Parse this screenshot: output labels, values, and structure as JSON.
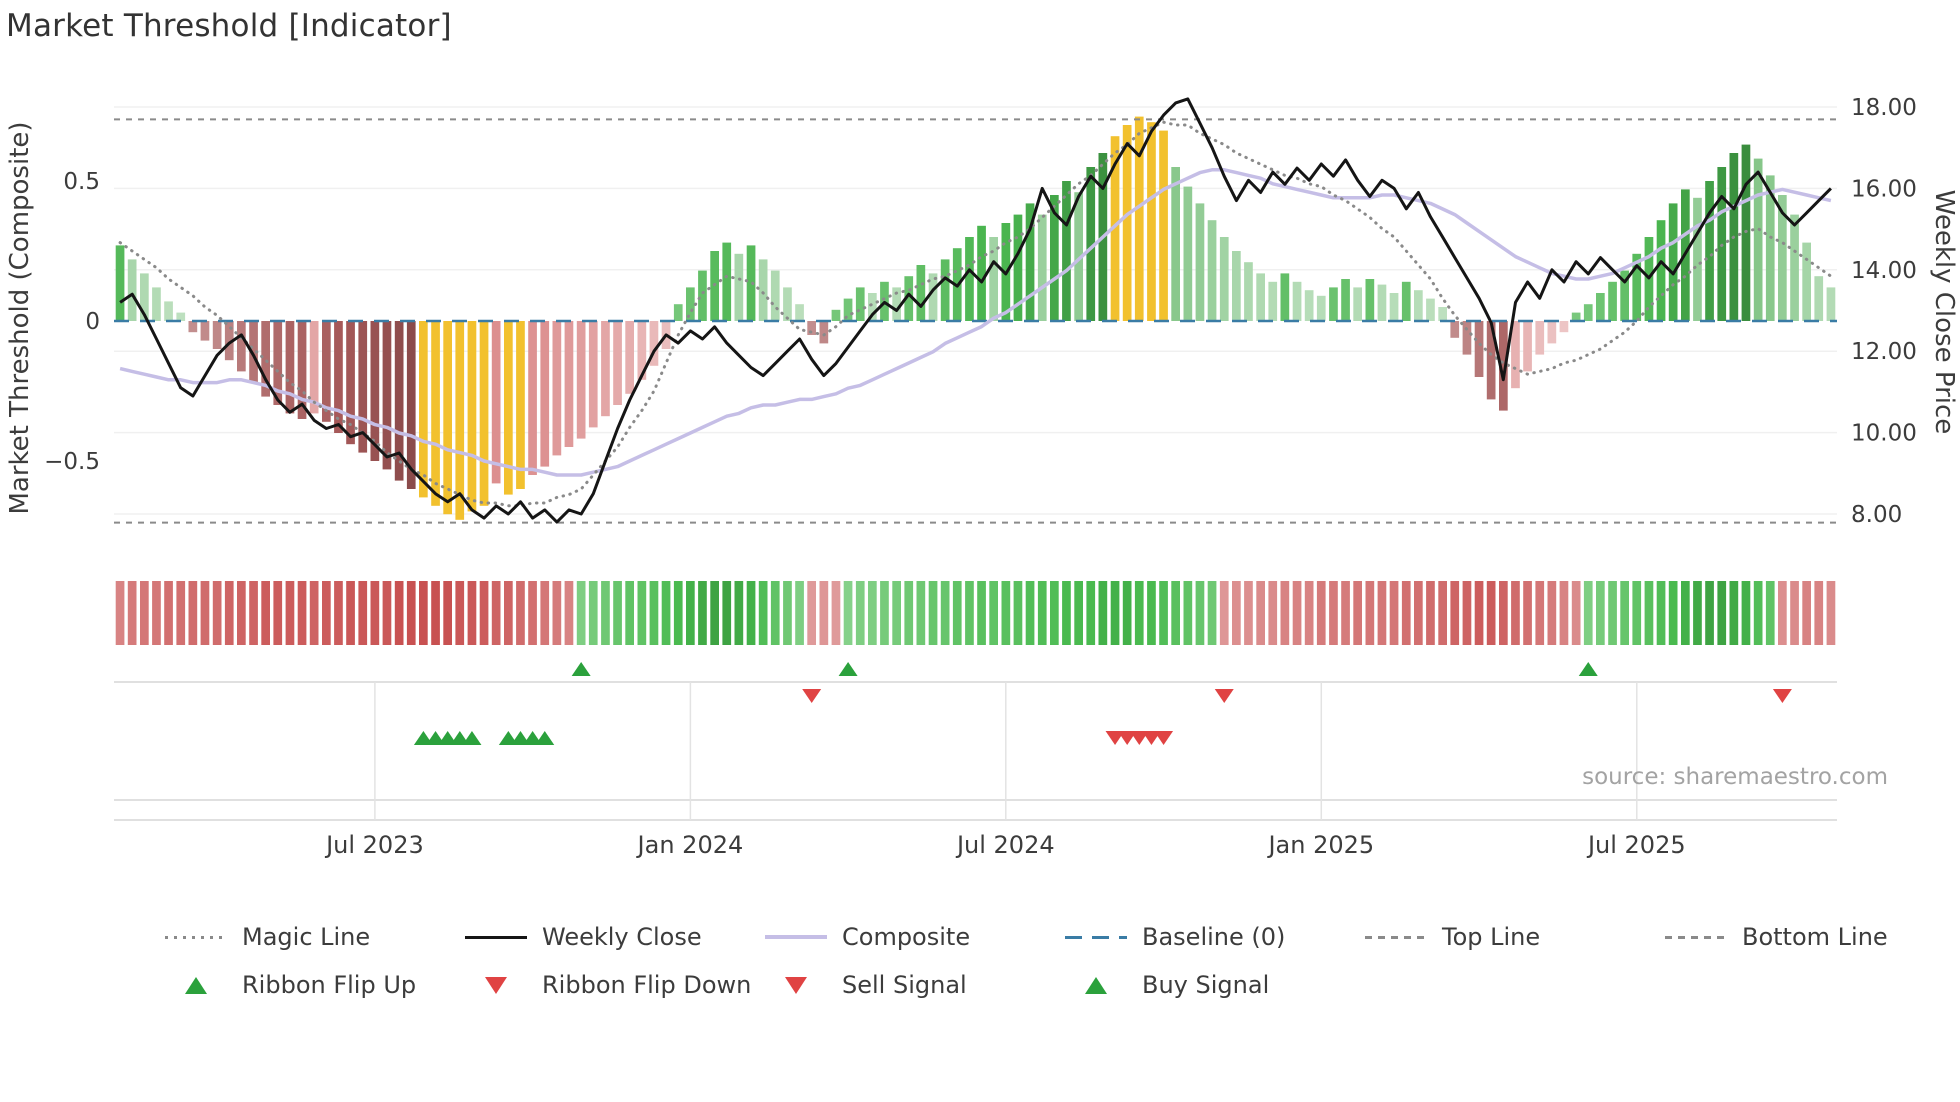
{
  "title": "Market Threshold [Indicator]",
  "source_note": "source: sharemaestro.com",
  "colors": {
    "accent_green": "#2ba13c",
    "accent_red": "#e04343",
    "yellow_extreme": "#f2c12e",
    "composite_line": "#c5bee6",
    "weekly_close_line": "#151515",
    "magic_line": "#8a8a8a",
    "baseline": "#3a7ca5",
    "band_lines": "#8a8a8a"
  },
  "legend": {
    "row1": [
      {
        "label": "Magic Line",
        "type": "dotted-gray-line",
        "color": "#8a8a8a",
        "name": "legend-magic-line"
      },
      {
        "label": "Weekly Close",
        "type": "solid-black-line",
        "color": "#151515",
        "name": "legend-weekly-close"
      },
      {
        "label": "Composite",
        "type": "solid-lavender-line",
        "color": "#c5bee6",
        "name": "legend-composite"
      },
      {
        "label": "Baseline (0)",
        "type": "dashed-blue-line",
        "color": "#3a7ca5",
        "name": "legend-baseline"
      },
      {
        "label": "Top Line",
        "type": "dashed-gray-line",
        "color": "#8a8a8a",
        "name": "legend-top-line"
      },
      {
        "label": "Bottom Line",
        "type": "dashed-gray-line",
        "color": "#8a8a8a",
        "name": "legend-bottom-line"
      }
    ],
    "row2": [
      {
        "label": "Ribbon Flip Up",
        "type": "triangle-up-green",
        "color": "#2ba13c",
        "name": "legend-ribbon-flip-up"
      },
      {
        "label": "Ribbon Flip Down",
        "type": "triangle-down-red",
        "color": "#e04343",
        "name": "legend-ribbon-flip-down"
      },
      {
        "label": "Sell Signal",
        "type": "triangle-down-red",
        "color": "#e04343",
        "name": "legend-sell-signal"
      },
      {
        "label": "Buy Signal",
        "type": "triangle-up-green",
        "color": "#2ba13c",
        "name": "legend-buy-signal"
      }
    ]
  },
  "chart_data": {
    "type": "combo",
    "subtype": "weekly indicator: threshold histogram bars + weekly close line + composite line + magic line + ribbon heat strip + signal markers",
    "x_unit": "week_index",
    "n_points": 142,
    "x_ticks": [
      {
        "label": "Jul 2023",
        "week": 21
      },
      {
        "label": "Jan 2024",
        "week": 47
      },
      {
        "label": "Jul 2024",
        "week": 73
      },
      {
        "label": "Jan 2025",
        "week": 99
      },
      {
        "label": "Jul 2025",
        "week": 125
      }
    ],
    "left_axis": {
      "label": "Market Threshold (Composite)",
      "range": [
        -0.85,
        0.85
      ],
      "ticks": [
        {
          "label": "0.5",
          "value": 0.5
        },
        {
          "label": "0",
          "value": 0
        },
        {
          "label": "−0.5",
          "value": -0.5
        }
      ]
    },
    "right_axis": {
      "label": "Weekly Close Price",
      "range": [
        6.8,
        18.6
      ],
      "ticks": [
        {
          "label": "18.00",
          "value": 18
        },
        {
          "label": "16.00",
          "value": 16
        },
        {
          "label": "14.00",
          "value": 14
        },
        {
          "label": "12.00",
          "value": 12
        },
        {
          "label": "10.00",
          "value": 10
        },
        {
          "label": "8.00",
          "value": 8
        }
      ]
    },
    "baseline": 0,
    "top_line": 0.72,
    "bottom_line": -0.72,
    "extreme_weeks": [
      25,
      26,
      27,
      28,
      29,
      30,
      32,
      33,
      82,
      83,
      84,
      85,
      86
    ],
    "series": {
      "threshold_bars": [
        0.27,
        0.22,
        0.17,
        0.12,
        0.07,
        0.03,
        -0.04,
        -0.07,
        -0.1,
        -0.14,
        -0.18,
        -0.22,
        -0.27,
        -0.3,
        -0.33,
        -0.35,
        -0.33,
        -0.36,
        -0.4,
        -0.44,
        -0.47,
        -0.5,
        -0.53,
        -0.57,
        -0.6,
        -0.63,
        -0.66,
        -0.69,
        -0.71,
        -0.68,
        -0.66,
        -0.58,
        -0.62,
        -0.6,
        -0.55,
        -0.52,
        -0.48,
        -0.45,
        -0.42,
        -0.38,
        -0.34,
        -0.3,
        -0.26,
        -0.21,
        -0.16,
        -0.1,
        0.06,
        0.12,
        0.18,
        0.25,
        0.28,
        0.24,
        0.27,
        0.22,
        0.18,
        0.12,
        0.06,
        -0.05,
        -0.08,
        0.04,
        0.08,
        0.12,
        0.1,
        0.14,
        0.12,
        0.16,
        0.2,
        0.17,
        0.22,
        0.26,
        0.3,
        0.34,
        0.3,
        0.35,
        0.38,
        0.42,
        0.38,
        0.45,
        0.5,
        0.46,
        0.55,
        0.6,
        0.66,
        0.7,
        0.73,
        0.71,
        0.68,
        0.55,
        0.48,
        0.42,
        0.36,
        0.3,
        0.25,
        0.21,
        0.17,
        0.14,
        0.17,
        0.14,
        0.11,
        0.09,
        0.12,
        0.15,
        0.12,
        0.15,
        0.13,
        0.1,
        0.14,
        0.11,
        0.08,
        0.05,
        -0.06,
        -0.12,
        -0.2,
        -0.28,
        -0.32,
        -0.24,
        -0.18,
        -0.12,
        -0.08,
        -0.04,
        0.03,
        0.06,
        0.1,
        0.14,
        0.18,
        0.24,
        0.3,
        0.36,
        0.42,
        0.47,
        0.44,
        0.5,
        0.55,
        0.6,
        0.63,
        0.58,
        0.52,
        0.45,
        0.38,
        0.28,
        0.16,
        0.12
      ],
      "weekly_close": [
        13.2,
        13.4,
        12.9,
        12.3,
        11.7,
        11.1,
        10.9,
        11.4,
        11.9,
        12.2,
        12.4,
        11.9,
        11.3,
        10.8,
        10.5,
        10.7,
        10.3,
        10.1,
        10.2,
        9.9,
        10.0,
        9.7,
        9.4,
        9.5,
        9.1,
        8.8,
        8.5,
        8.3,
        8.5,
        8.1,
        7.9,
        8.2,
        8.0,
        8.3,
        7.9,
        8.1,
        7.8,
        8.1,
        8.0,
        8.5,
        9.3,
        10.1,
        10.8,
        11.4,
        12.0,
        12.4,
        12.2,
        12.5,
        12.3,
        12.6,
        12.2,
        11.9,
        11.6,
        11.4,
        11.7,
        12.0,
        12.3,
        11.8,
        11.4,
        11.7,
        12.1,
        12.5,
        12.9,
        13.2,
        13.0,
        13.4,
        13.1,
        13.5,
        13.8,
        13.6,
        14.0,
        13.7,
        14.2,
        13.9,
        14.4,
        15.0,
        16.0,
        15.4,
        15.1,
        15.8,
        16.3,
        16.0,
        16.6,
        17.1,
        16.8,
        17.4,
        17.8,
        18.1,
        18.2,
        17.6,
        17.0,
        16.3,
        15.7,
        16.2,
        15.9,
        16.4,
        16.1,
        16.5,
        16.2,
        16.6,
        16.3,
        16.7,
        16.2,
        15.8,
        16.2,
        16.0,
        15.5,
        15.9,
        15.3,
        14.8,
        14.3,
        13.8,
        13.3,
        12.7,
        11.3,
        13.2,
        13.7,
        13.3,
        14.0,
        13.7,
        14.2,
        13.9,
        14.3,
        14.0,
        13.7,
        14.1,
        13.8,
        14.2,
        13.9,
        14.4,
        14.9,
        15.4,
        15.8,
        15.5,
        16.1,
        16.4,
        15.9,
        15.4,
        15.1,
        15.4,
        15.7,
        16.0
      ],
      "composite": [
        -0.17,
        -0.18,
        -0.19,
        -0.2,
        -0.21,
        -0.21,
        -0.22,
        -0.22,
        -0.22,
        -0.21,
        -0.21,
        -0.22,
        -0.23,
        -0.25,
        -0.26,
        -0.28,
        -0.29,
        -0.31,
        -0.32,
        -0.34,
        -0.35,
        -0.37,
        -0.38,
        -0.4,
        -0.41,
        -0.43,
        -0.44,
        -0.46,
        -0.47,
        -0.48,
        -0.5,
        -0.51,
        -0.52,
        -0.53,
        -0.53,
        -0.54,
        -0.55,
        -0.55,
        -0.55,
        -0.54,
        -0.53,
        -0.52,
        -0.5,
        -0.48,
        -0.46,
        -0.44,
        -0.42,
        -0.4,
        -0.38,
        -0.36,
        -0.34,
        -0.33,
        -0.31,
        -0.3,
        -0.3,
        -0.29,
        -0.28,
        -0.28,
        -0.27,
        -0.26,
        -0.24,
        -0.23,
        -0.21,
        -0.19,
        -0.17,
        -0.15,
        -0.13,
        -0.11,
        -0.08,
        -0.06,
        -0.04,
        -0.02,
        0.01,
        0.03,
        0.06,
        0.09,
        0.12,
        0.15,
        0.18,
        0.22,
        0.26,
        0.3,
        0.34,
        0.38,
        0.41,
        0.44,
        0.47,
        0.49,
        0.51,
        0.53,
        0.54,
        0.54,
        0.53,
        0.52,
        0.51,
        0.49,
        0.48,
        0.47,
        0.46,
        0.45,
        0.44,
        0.44,
        0.44,
        0.44,
        0.45,
        0.45,
        0.44,
        0.43,
        0.42,
        0.4,
        0.38,
        0.35,
        0.32,
        0.29,
        0.26,
        0.23,
        0.21,
        0.19,
        0.17,
        0.16,
        0.15,
        0.15,
        0.16,
        0.17,
        0.19,
        0.21,
        0.23,
        0.26,
        0.28,
        0.31,
        0.34,
        0.36,
        0.39,
        0.41,
        0.43,
        0.45,
        0.46,
        0.47,
        0.46,
        0.45,
        0.44,
        0.43
      ],
      "magic_line": [
        0.28,
        0.25,
        0.22,
        0.19,
        0.15,
        0.12,
        0.09,
        0.05,
        0.02,
        -0.02,
        -0.06,
        -0.1,
        -0.14,
        -0.18,
        -0.22,
        -0.25,
        -0.29,
        -0.32,
        -0.35,
        -0.37,
        -0.4,
        -0.43,
        -0.47,
        -0.5,
        -0.53,
        -0.55,
        -0.58,
        -0.6,
        -0.62,
        -0.64,
        -0.65,
        -0.65,
        -0.66,
        -0.66,
        -0.65,
        -0.65,
        -0.63,
        -0.62,
        -0.6,
        -0.55,
        -0.5,
        -0.45,
        -0.38,
        -0.32,
        -0.25,
        -0.15,
        -0.05,
        0.03,
        0.1,
        0.13,
        0.16,
        0.15,
        0.14,
        0.1,
        0.05,
        0.01,
        -0.03,
        -0.04,
        -0.05,
        -0.02,
        0.02,
        0.04,
        0.06,
        0.08,
        0.1,
        0.11,
        0.13,
        0.15,
        0.16,
        0.18,
        0.2,
        0.23,
        0.25,
        0.28,
        0.3,
        0.33,
        0.37,
        0.41,
        0.45,
        0.49,
        0.52,
        0.56,
        0.6,
        0.63,
        0.67,
        0.69,
        0.71,
        0.7,
        0.7,
        0.67,
        0.65,
        0.63,
        0.6,
        0.58,
        0.56,
        0.54,
        0.52,
        0.51,
        0.49,
        0.48,
        0.45,
        0.43,
        0.4,
        0.37,
        0.33,
        0.3,
        0.25,
        0.2,
        0.15,
        0.08,
        0.02,
        -0.03,
        -0.08,
        -0.12,
        -0.15,
        -0.17,
        -0.19,
        -0.18,
        -0.17,
        -0.15,
        -0.14,
        -0.12,
        -0.1,
        -0.07,
        -0.04,
        0.0,
        0.05,
        0.09,
        0.13,
        0.16,
        0.2,
        0.23,
        0.27,
        0.3,
        0.32,
        0.33,
        0.3,
        0.28,
        0.25,
        0.22,
        0.19,
        0.16
      ],
      "ribbon": [
        -0.5,
        -0.55,
        -0.6,
        -0.6,
        -0.65,
        -0.65,
        -0.7,
        -0.7,
        -0.7,
        -0.75,
        -0.75,
        -0.75,
        -0.8,
        -0.8,
        -0.8,
        -0.8,
        -0.75,
        -0.8,
        -0.8,
        -0.85,
        -0.85,
        -0.85,
        -0.85,
        -0.9,
        -0.9,
        -0.9,
        -0.9,
        -0.9,
        -0.85,
        -0.85,
        -0.8,
        -0.75,
        -0.75,
        -0.7,
        -0.65,
        -0.6,
        -0.55,
        -0.5,
        0.4,
        0.45,
        0.5,
        0.55,
        0.6,
        0.6,
        0.65,
        0.7,
        0.75,
        0.8,
        0.85,
        0.9,
        0.9,
        0.85,
        0.8,
        0.7,
        0.6,
        0.5,
        0.4,
        -0.3,
        -0.35,
        -0.3,
        0.35,
        0.4,
        0.4,
        0.45,
        0.45,
        0.5,
        0.5,
        0.55,
        0.55,
        0.6,
        0.6,
        0.65,
        0.6,
        0.65,
        0.65,
        0.7,
        0.7,
        0.7,
        0.75,
        0.75,
        0.75,
        0.8,
        0.8,
        0.8,
        0.75,
        0.75,
        0.7,
        0.65,
        0.6,
        0.55,
        0.5,
        -0.35,
        -0.4,
        -0.4,
        -0.45,
        -0.45,
        -0.5,
        -0.5,
        -0.5,
        -0.55,
        -0.55,
        -0.55,
        -0.6,
        -0.6,
        -0.6,
        -0.6,
        -0.65,
        -0.65,
        -0.7,
        -0.7,
        -0.75,
        -0.75,
        -0.8,
        -0.8,
        -0.75,
        -0.7,
        -0.65,
        -0.6,
        -0.55,
        -0.5,
        -0.45,
        0.4,
        0.45,
        0.5,
        0.55,
        0.6,
        0.65,
        0.7,
        0.75,
        0.8,
        0.85,
        0.9,
        0.9,
        0.85,
        0.8,
        0.7,
        0.6,
        -0.4,
        -0.45,
        -0.5,
        -0.5,
        -0.45
      ]
    },
    "signals": {
      "ribbon_flip_up": [
        38,
        60,
        121
      ],
      "ribbon_flip_down": [
        57,
        91,
        137
      ],
      "buy": [
        25,
        26,
        27,
        28,
        29,
        32,
        33,
        34,
        35
      ],
      "sell": [
        82,
        83,
        84,
        85,
        86
      ]
    }
  }
}
